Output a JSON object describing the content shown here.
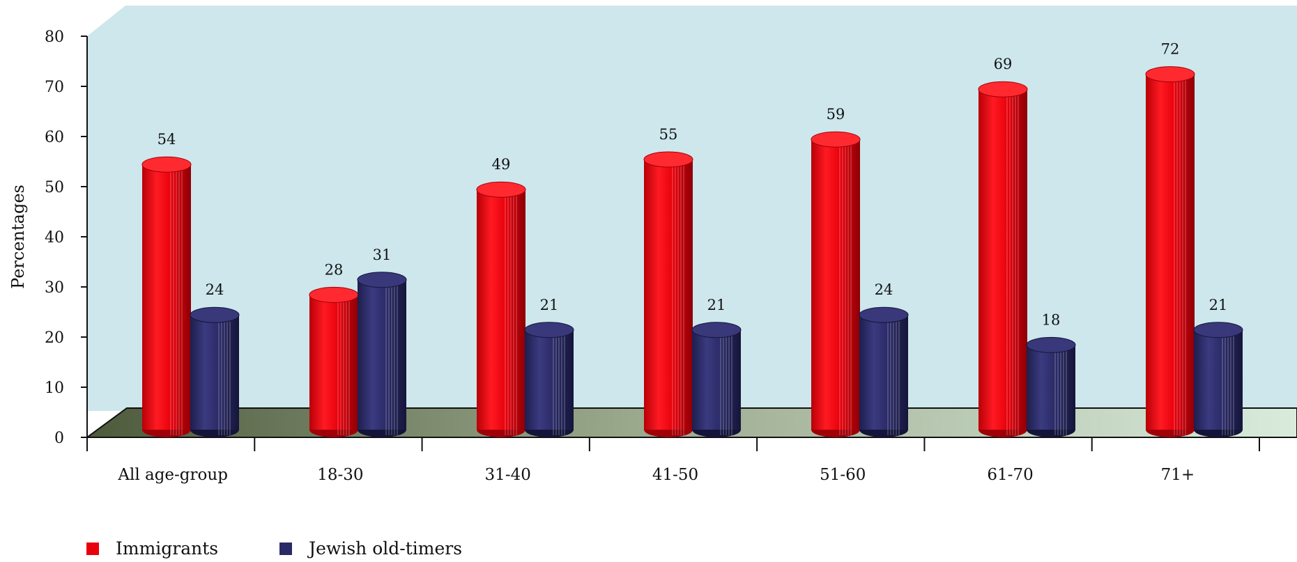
{
  "chart_data": {
    "type": "bar",
    "style": "3d-cylinder",
    "categories": [
      "All age-group",
      "18-30",
      "31-40",
      "41-50",
      "51-60",
      "61-70",
      "71+"
    ],
    "series": [
      {
        "name": "Immigrants",
        "color": "#e8000b",
        "values": [
          54,
          28,
          49,
          55,
          59,
          69,
          72
        ]
      },
      {
        "name": "Jewish old-timers",
        "color": "#2a2a66",
        "values": [
          24,
          31,
          21,
          21,
          24,
          18,
          21
        ]
      }
    ],
    "ylabel": "Percentages",
    "xlabel": "",
    "ylim": [
      0,
      80
    ],
    "yticks": [
      "0",
      "10",
      "20",
      "30",
      "40",
      "50",
      "60",
      "70",
      "80"
    ],
    "grid": false,
    "legend_position": "bottom-left",
    "wall_color": "#cde7ec"
  }
}
